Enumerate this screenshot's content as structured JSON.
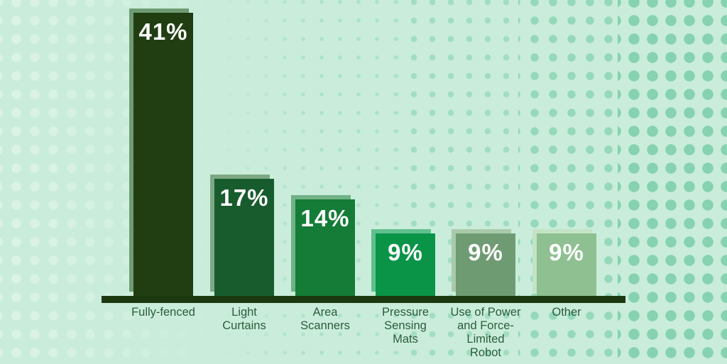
{
  "page": {
    "background_color": "#c9edda",
    "dot_color_light": "#ddf5e8",
    "dot_color_dark": "#9fe0c4"
  },
  "chart_data": {
    "type": "bar",
    "title": "",
    "xlabel": "",
    "ylabel": "",
    "unit": "%",
    "ylim": [
      0,
      42
    ],
    "grid": false,
    "legend": false,
    "categories": [
      "Fully-fenced",
      "Light Curtains",
      "Area Scanners",
      "Pressure Sensing Mats",
      "Use of Power and Force-Limited Robot",
      "Other"
    ],
    "values": [
      41,
      17,
      14,
      9,
      9,
      9
    ],
    "value_labels": [
      "41%",
      "17%",
      "14%",
      "9%",
      "9%",
      "9%"
    ],
    "axis_color": "#1c380f",
    "category_label_color": "#2c5c3b",
    "value_label_color": "#ffffff",
    "bars": [
      {
        "category_display": "Fully-fenced",
        "value": 41,
        "value_label": "41%",
        "fill": "#213e12",
        "shadow": "#6f9b72"
      },
      {
        "category_display": "Light\nCurtains",
        "value": 17,
        "value_label": "17%",
        "fill": "#185c2e",
        "shadow": "#7da884"
      },
      {
        "category_display": "Area\nScanners",
        "value": 14,
        "value_label": "14%",
        "fill": "#147c36",
        "shadow": "#71b187"
      },
      {
        "category_display": "Pressure\nSensing\nMats",
        "value": 9,
        "value_label": "9%",
        "fill": "#0a9448",
        "shadow": "#60bf8e"
      },
      {
        "category_display": "Use of Power\nand Force-\nLimited\nRobot",
        "value": 9,
        "value_label": "9%",
        "fill": "#6f9b72",
        "shadow": "#a9caaa"
      },
      {
        "category_display": "Other",
        "value": 9,
        "value_label": "9%",
        "fill": "#8ec091",
        "shadow": "#c4e3c6"
      }
    ]
  }
}
